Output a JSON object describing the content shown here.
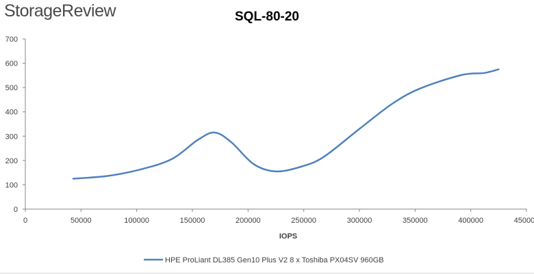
{
  "brand": {
    "logo_text": "StorageReview"
  },
  "chart_data": {
    "type": "line",
    "title": "SQL-80-20",
    "xlabel": "IOPS",
    "ylabel": "",
    "xlim": [
      0,
      450000
    ],
    "ylim": [
      0,
      700
    ],
    "x_ticks": [
      "0",
      "50000",
      "100000",
      "150000",
      "200000",
      "250000",
      "300000",
      "350000",
      "400000",
      "450000"
    ],
    "y_ticks": [
      "0",
      "100",
      "200",
      "300",
      "400",
      "500",
      "600",
      "700"
    ],
    "grid": false,
    "legend_position": "bottom",
    "series": [
      {
        "name": "HPE ProLiant DL385 Gen10 Plus V2 8 x Toshiba PX04SV 960GB",
        "color": "#4f81bd",
        "x": [
          43000,
          75000,
          105000,
          132000,
          155000,
          170000,
          185000,
          205000,
          225000,
          248000,
          268000,
          300000,
          330000,
          355000,
          392000,
          412000,
          425000
        ],
        "y": [
          125,
          137,
          165,
          207,
          285,
          315,
          275,
          185,
          155,
          175,
          215,
          330,
          435,
          497,
          552,
          560,
          575
        ]
      }
    ]
  }
}
